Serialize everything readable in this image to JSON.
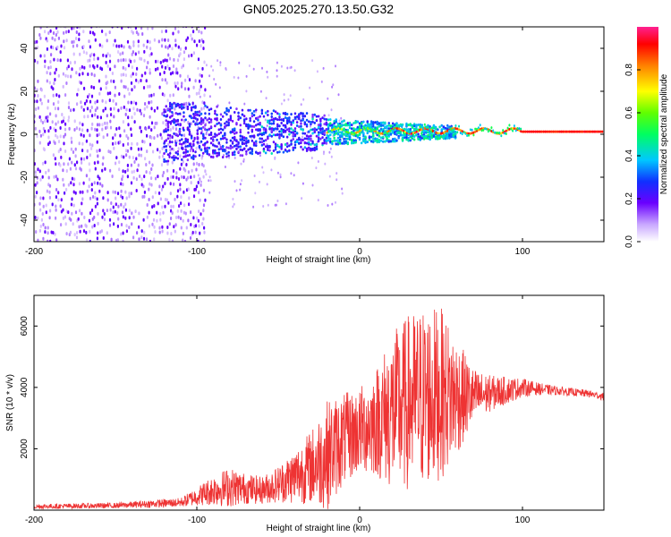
{
  "title": "GN05.2025.270.13.50.G32",
  "colors": {
    "snr_line": "#ee3333",
    "spectrogram_low": "#7a1fff",
    "background": "#ffffff"
  },
  "chart_data": [
    {
      "type": "heatmap",
      "name": "spectrogram",
      "title": "GN05.2025.270.13.50.G32",
      "xlabel": "Height of straight line (km)",
      "ylabel": "Frequency (Hz)",
      "xlim": [
        -200,
        150
      ],
      "ylim": [
        -50,
        50
      ],
      "x_ticks": [
        "-200",
        "-100",
        "0",
        "100"
      ],
      "x_tick_values": [
        -200,
        -100,
        0,
        100
      ],
      "y_ticks": [
        "40",
        "20",
        "0",
        "-20",
        "-40"
      ],
      "y_tick_values": [
        40,
        20,
        0,
        -20,
        -40
      ],
      "colorbar": {
        "label": "Normalized spectral amplitude",
        "range": [
          0,
          1
        ],
        "ticks": [
          "0.0",
          "0.2",
          "0.4",
          "0.6",
          "0.8"
        ],
        "tick_values": [
          0,
          0.2,
          0.4,
          0.6,
          0.8
        ]
      },
      "description_regions": [
        {
          "x_range": [
            -200,
            -100
          ],
          "freq_range": [
            -50,
            50
          ],
          "amplitude": 0.1
        },
        {
          "x_range": [
            -120,
            -20
          ],
          "freq_range": [
            -15,
            15
          ],
          "amplitude": 0.2
        },
        {
          "x_range": [
            -20,
            60
          ],
          "freq_range": [
            -3,
            5
          ],
          "amplitude": 0.8
        },
        {
          "x_range": [
            60,
            150
          ],
          "freq_range": [
            0,
            3
          ],
          "amplitude": 0.95
        }
      ]
    },
    {
      "type": "line",
      "name": "snr",
      "xlabel": "Height of straight line (km)",
      "ylabel": "SNR (10 * v/v)",
      "xlim": [
        -200,
        150
      ],
      "ylim": [
        0,
        7000
      ],
      "x_ticks": [
        "-200",
        "-100",
        "0",
        "100"
      ],
      "x_tick_values": [
        -200,
        -100,
        0,
        100
      ],
      "y_ticks": [
        "6000",
        "4000",
        "2000"
      ],
      "y_tick_values": [
        6000,
        4000,
        2000
      ],
      "envelope": {
        "x": [
          -200,
          -150,
          -110,
          -100,
          -90,
          -80,
          -70,
          -60,
          -50,
          -40,
          -30,
          -20,
          -10,
          0,
          10,
          20,
          30,
          40,
          50,
          60,
          70,
          80,
          90,
          100,
          110,
          120,
          130,
          140,
          150
        ],
        "center": [
          120,
          150,
          250,
          450,
          650,
          750,
          700,
          650,
          850,
          1100,
          1400,
          1800,
          2300,
          2600,
          2900,
          3200,
          3500,
          3700,
          3800,
          3700,
          3700,
          3800,
          3900,
          4000,
          3950,
          3900,
          3850,
          3800,
          3700
        ],
        "spread": [
          80,
          90,
          150,
          300,
          500,
          650,
          500,
          450,
          600,
          900,
          1200,
          1800,
          1500,
          1400,
          1800,
          2600,
          2900,
          3000,
          2800,
          1900,
          900,
          600,
          450,
          300,
          200,
          150,
          130,
          120,
          120
        ]
      }
    }
  ]
}
